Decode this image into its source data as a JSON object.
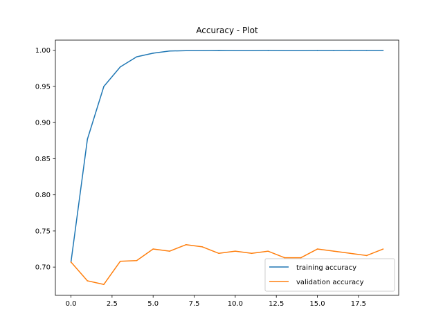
{
  "chart_data": {
    "type": "line",
    "title": "Accuracy - Plot",
    "xlabel": "",
    "ylabel": "",
    "xlim": [
      -0.95,
      19.95
    ],
    "ylim": [
      0.6609,
      1.0141
    ],
    "xticks": [
      0,
      2.5,
      5,
      7.5,
      10,
      12.5,
      15,
      17.5
    ],
    "xtick_labels": [
      "0.0",
      "2.5",
      "5.0",
      "7.5",
      "10.0",
      "12.5",
      "15.0",
      "17.5"
    ],
    "yticks": [
      0.7,
      0.75,
      0.8,
      0.85,
      0.9,
      0.95,
      1.0
    ],
    "ytick_labels": [
      "0.70",
      "0.75",
      "0.80",
      "0.85",
      "0.90",
      "0.95",
      "1.00"
    ],
    "grid": false,
    "legend_position": "bottom-right",
    "x": [
      0,
      1,
      2,
      3,
      4,
      5,
      6,
      7,
      8,
      9,
      10,
      11,
      12,
      13,
      14,
      15,
      16,
      17,
      18,
      19
    ],
    "series": [
      {
        "name": "training accuracy",
        "color": "#1f77b4",
        "values": [
          0.707,
          0.877,
          0.95,
          0.977,
          0.991,
          0.996,
          0.999,
          0.9995,
          0.9995,
          0.9998,
          0.9995,
          0.9995,
          0.9998,
          0.9995,
          0.9995,
          0.9998,
          0.9998,
          0.9999,
          0.9999,
          0.9999
        ]
      },
      {
        "name": "validation accuracy",
        "color": "#ff7f0e",
        "values": [
          0.707,
          0.681,
          0.676,
          0.708,
          0.709,
          0.725,
          0.722,
          0.731,
          0.728,
          0.719,
          0.722,
          0.719,
          0.722,
          0.713,
          0.713,
          0.725,
          0.722,
          0.719,
          0.716,
          0.725
        ]
      }
    ]
  }
}
